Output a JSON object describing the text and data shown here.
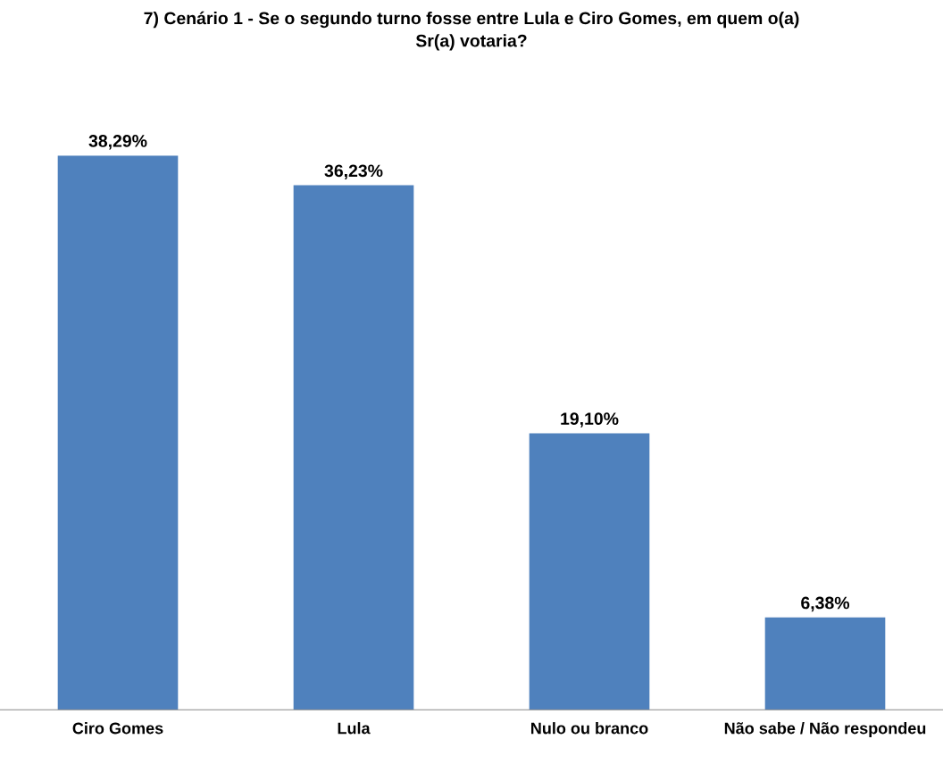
{
  "chart_data": {
    "type": "bar",
    "title": "7) Cenário 1 - Se o segundo turno fosse entre Lula e Ciro Gomes, em quem o(a)\nSr(a) votaria?",
    "categories": [
      "Ciro Gomes",
      "Lula",
      "Nulo ou branco",
      "Não sabe / Não respondeu"
    ],
    "values": [
      38.29,
      36.23,
      19.1,
      6.38
    ],
    "value_labels": [
      "38,29%",
      "36,23%",
      "19,10%",
      "6,38%"
    ],
    "color": "#4f81bd",
    "grid": false,
    "legend": false
  }
}
